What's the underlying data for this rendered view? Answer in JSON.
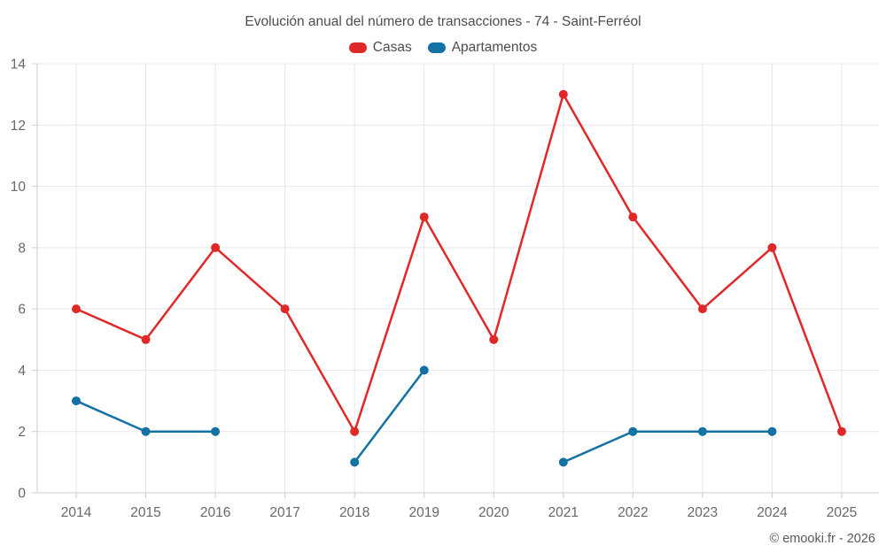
{
  "chart_data": {
    "type": "line",
    "title": "Evolución anual del número de transacciones - 74 - Saint-Ferréol",
    "categories": [
      "2014",
      "2015",
      "2016",
      "2017",
      "2018",
      "2019",
      "2020",
      "2021",
      "2022",
      "2023",
      "2024",
      "2025"
    ],
    "series": [
      {
        "name": "Casas",
        "color": "#e02828",
        "values": [
          6,
          5,
          8,
          6,
          2,
          9,
          5,
          13,
          9,
          6,
          8,
          2
        ]
      },
      {
        "name": "Apartamentos",
        "color": "#1371a3",
        "values": [
          3,
          2,
          2,
          null,
          1,
          4,
          null,
          1,
          2,
          2,
          2,
          null
        ]
      }
    ],
    "xlabel": "",
    "ylabel": "",
    "ylim": [
      0,
      14
    ],
    "ytick_step": 2,
    "yticks": [
      0,
      2,
      4,
      6,
      8,
      10,
      12,
      14
    ],
    "grid": true,
    "legend_position": "top",
    "footer": "© emooki.fr - 2026",
    "colors": {
      "grid": "#e7e7e7",
      "axis": "#cccccc",
      "tick_label": "#686868",
      "title": "#4d4d4d"
    }
  }
}
